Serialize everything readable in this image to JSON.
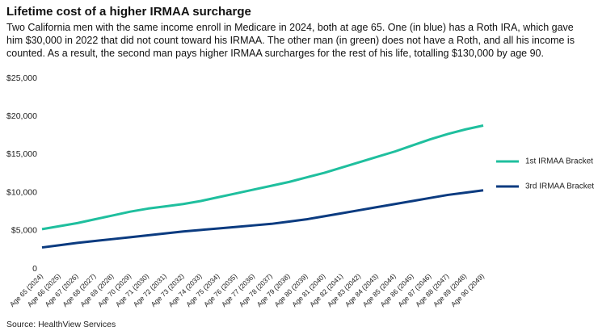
{
  "chart_data": {
    "type": "line",
    "title": "Lifetime cost of a higher IRMAA surcharge",
    "subtitle": "Two California men with the same income enroll in Medicare in 2024, both at age 65. One (in blue) has a Roth IRA, which gave him $30,000 in 2022 that did not count toward his IRMAA. The other man (in green) does not have a Roth, and all his income is counted. As a result, the second man pays higher IRMAA surcharges for the rest of his life, totalling $130,000 by age 90.",
    "source": "Source: HealthView Services",
    "categories": [
      "Age 65 (2024)",
      "Age 66 (2025)",
      "Age 67 (2026)",
      "Age 68 (2027)",
      "Age 69 (2028)",
      "Age 70 (2029)",
      "Age 71 (2030)",
      "Age 72 (2031)",
      "Age 73 (2032)",
      "Age 74 (2033)",
      "Age 75 (2034)",
      "Age 76 (2035)",
      "Age 77 (2036)",
      "Age 78 (2037)",
      "Age 79 (2038)",
      "Age 80 (2039)",
      "Age 81 (2040)",
      "Age 82 (2041)",
      "Age 83 (2042)",
      "Age 84 (2043)",
      "Age 85 (2044)",
      "Age 86 (2045)",
      "Age 87 (2046)",
      "Age 88 (2047)",
      "Age 89 (2048)",
      "Age 90 (2049)"
    ],
    "series": [
      {
        "name": "1st IRMAA Bracket",
        "color": "#1fbf9e",
        "values": [
          5200,
          5600,
          6000,
          6500,
          7000,
          7500,
          7900,
          8200,
          8500,
          8900,
          9400,
          9900,
          10400,
          10900,
          11400,
          12000,
          12600,
          13300,
          14000,
          14700,
          15400,
          16200,
          17000,
          17700,
          18300,
          18800
        ]
      },
      {
        "name": "3rd IRMAA Bracket",
        "color": "#0b3b80",
        "values": [
          2800,
          3100,
          3400,
          3650,
          3900,
          4150,
          4400,
          4650,
          4900,
          5100,
          5300,
          5500,
          5700,
          5900,
          6200,
          6500,
          6900,
          7300,
          7700,
          8100,
          8500,
          8900,
          9300,
          9700,
          10000,
          10300
        ]
      }
    ],
    "ylim": [
      0,
      25000
    ],
    "yticks": [
      0,
      {
        "value": 5000,
        "label": "$5,000"
      },
      {
        "value": 10000,
        "label": "$10,000"
      },
      {
        "value": 15000,
        "label": "$15,000"
      },
      {
        "value": 20000,
        "label": "$20,000"
      },
      {
        "value": 25000,
        "label": "$25,000"
      }
    ],
    "legend": "right"
  }
}
